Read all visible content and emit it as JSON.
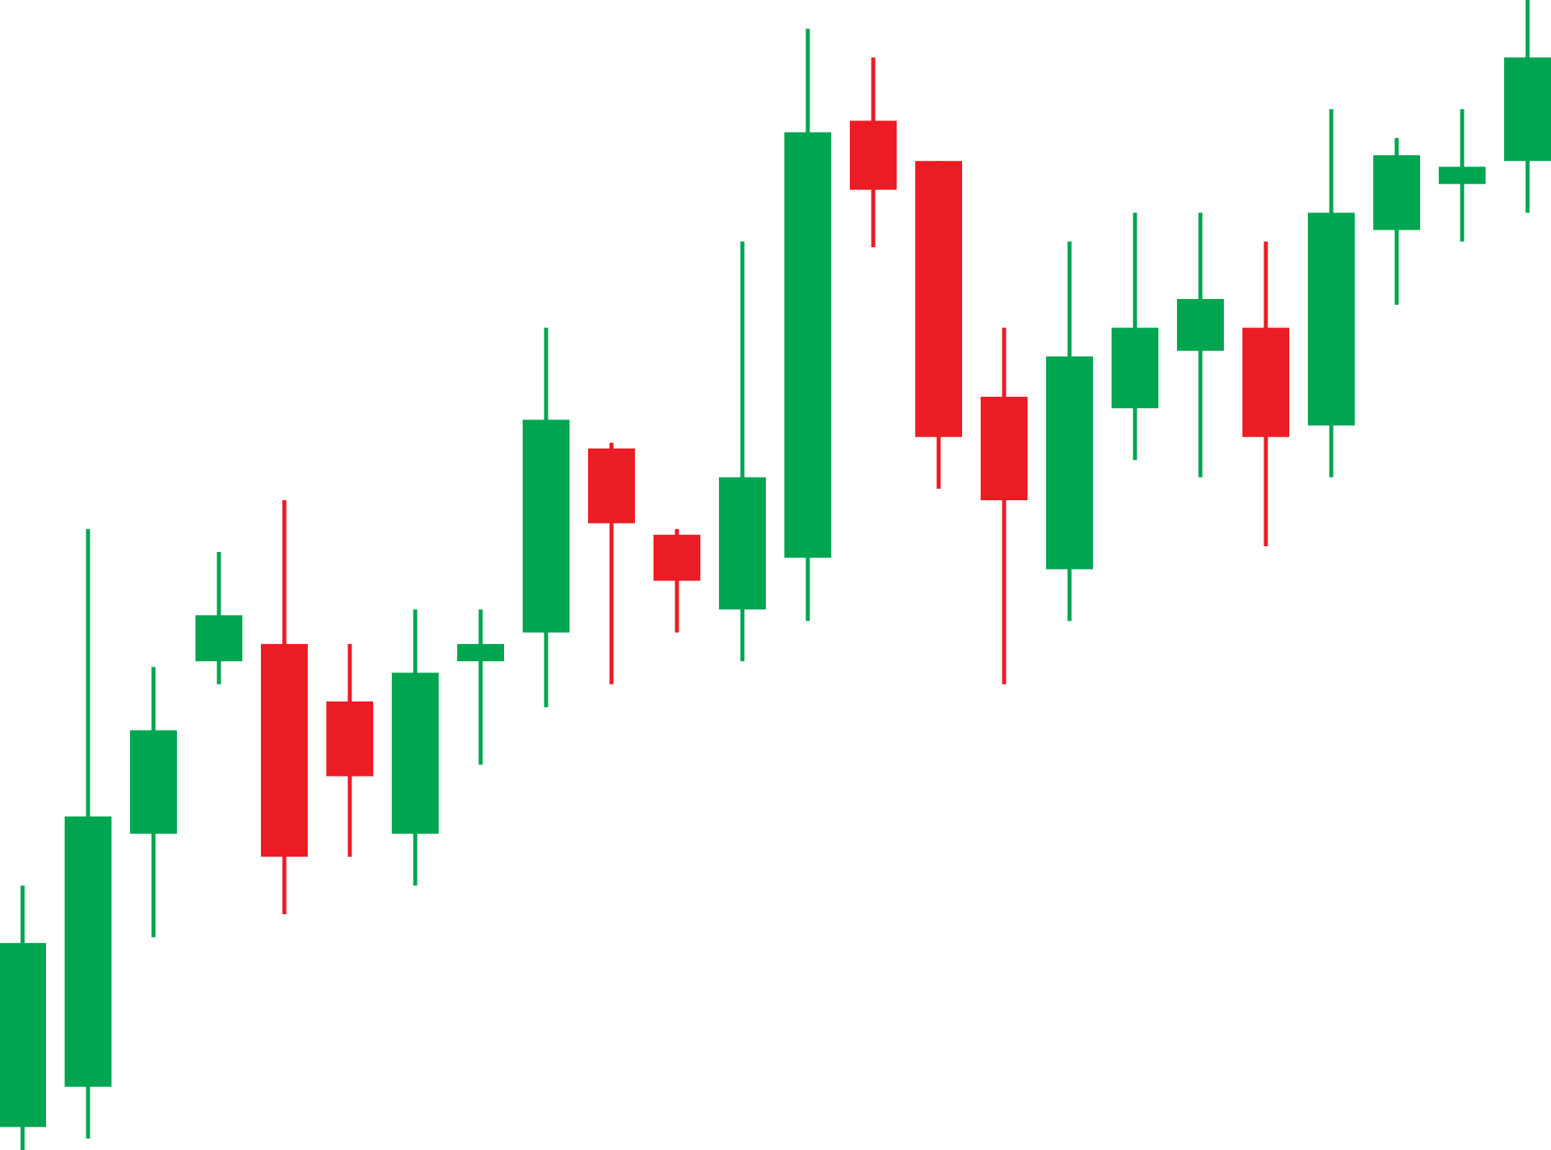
{
  "chart_data": {
    "type": "candlestick",
    "title": "",
    "xlabel": "",
    "ylabel": "",
    "axes_visible": false,
    "grid": false,
    "legend": "none",
    "ylim": [
      0,
      100
    ],
    "colors": {
      "up": "#00A550",
      "down": "#EC1C24",
      "background": "#FFFFFF"
    },
    "candles": [
      {
        "open": 2.0,
        "high": 23.0,
        "low": 0.0,
        "close": 18.0
      },
      {
        "open": 5.5,
        "high": 54.0,
        "low": 1.0,
        "close": 29.0
      },
      {
        "open": 27.5,
        "high": 42.0,
        "low": 18.5,
        "close": 36.5
      },
      {
        "open": 42.5,
        "high": 52.0,
        "low": 40.5,
        "close": 46.5
      },
      {
        "open": 44.0,
        "high": 56.5,
        "low": 20.5,
        "close": 25.5
      },
      {
        "open": 39.0,
        "high": 44.0,
        "low": 25.5,
        "close": 32.5
      },
      {
        "open": 27.5,
        "high": 47.0,
        "low": 23.0,
        "close": 41.5
      },
      {
        "open": 42.5,
        "high": 47.0,
        "low": 33.5,
        "close": 44.0
      },
      {
        "open": 45.0,
        "high": 71.5,
        "low": 38.5,
        "close": 63.5
      },
      {
        "open": 61.0,
        "high": 61.5,
        "low": 40.5,
        "close": 54.5
      },
      {
        "open": 53.5,
        "high": 54.0,
        "low": 45.0,
        "close": 49.5
      },
      {
        "open": 47.0,
        "high": 79.0,
        "low": 42.5,
        "close": 58.5
      },
      {
        "open": 51.5,
        "high": 97.5,
        "low": 46.0,
        "close": 88.5
      },
      {
        "open": 89.5,
        "high": 95.0,
        "low": 78.5,
        "close": 83.5
      },
      {
        "open": 86.0,
        "high": 86.0,
        "low": 57.5,
        "close": 62.0
      },
      {
        "open": 65.5,
        "high": 71.5,
        "low": 40.5,
        "close": 56.5
      },
      {
        "open": 50.5,
        "high": 79.0,
        "low": 46.0,
        "close": 69.0
      },
      {
        "open": 64.5,
        "high": 81.5,
        "low": 60.0,
        "close": 71.5
      },
      {
        "open": 69.5,
        "high": 81.5,
        "low": 58.5,
        "close": 74.0
      },
      {
        "open": 71.5,
        "high": 79.0,
        "low": 52.5,
        "close": 62.0
      },
      {
        "open": 63.0,
        "high": 90.5,
        "low": 58.5,
        "close": 81.5
      },
      {
        "open": 80.0,
        "high": 88.0,
        "low": 73.5,
        "close": 86.5
      },
      {
        "open": 84.0,
        "high": 90.5,
        "low": 79.0,
        "close": 85.5
      },
      {
        "open": 86.0,
        "high": 100.0,
        "low": 81.5,
        "close": 95.0
      }
    ]
  }
}
